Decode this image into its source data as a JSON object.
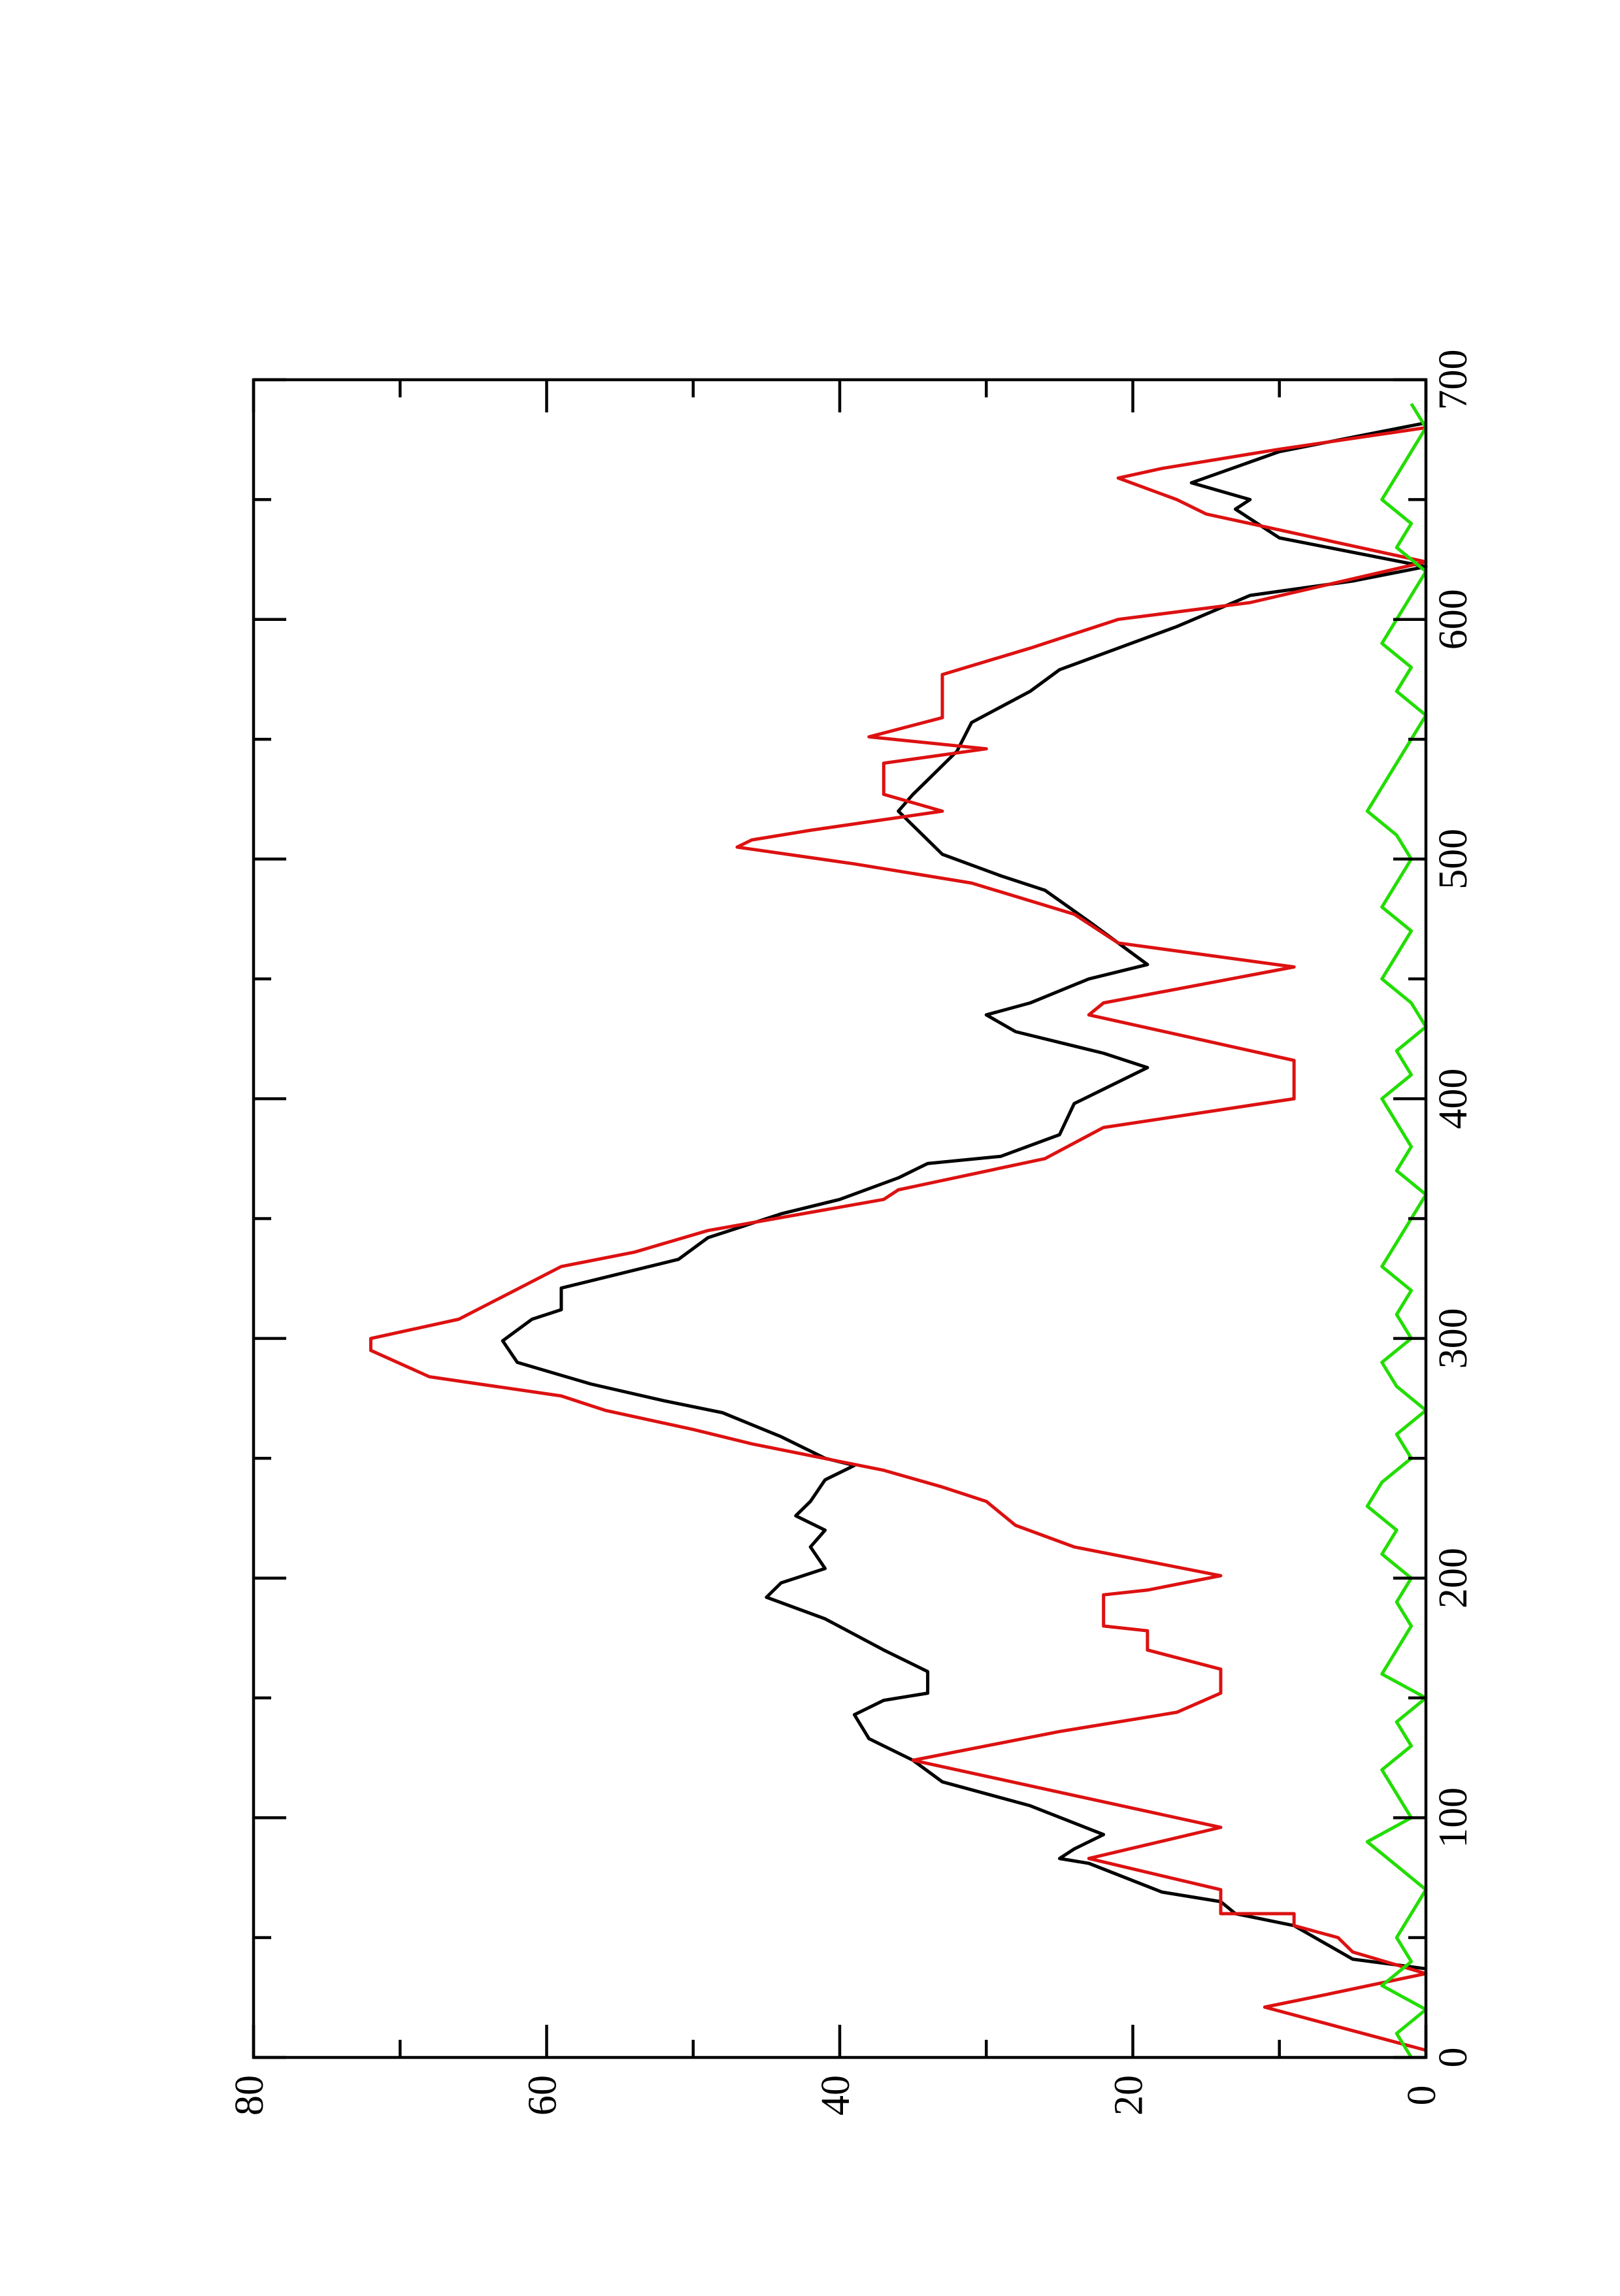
{
  "chart_data": {
    "type": "line",
    "xlim": [
      0,
      700
    ],
    "xticks": [
      0,
      100,
      200,
      300,
      400,
      500,
      600,
      700
    ],
    "xminorticks": [
      50,
      150,
      250,
      350,
      450,
      550,
      650
    ],
    "ylim": [
      0,
      80
    ],
    "yticks": [
      0,
      20,
      40,
      60,
      80
    ],
    "yminorticks": [
      10,
      30,
      50,
      70
    ],
    "rotated": true,
    "series": [
      {
        "color": "#000000",
        "x": [
          37,
          41,
          55,
          60,
          65,
          69,
          81,
          83,
          87,
          93,
          105,
          115,
          124,
          133,
          143,
          149,
          152,
          161,
          170,
          183,
          192,
          198,
          204,
          213,
          220,
          226,
          232,
          241,
          247,
          250,
          259,
          269,
          274,
          281,
          290,
          299,
          308,
          312,
          321,
          333,
          342,
          352,
          358,
          367,
          373,
          376,
          385,
          398,
          404,
          413,
          419,
          428,
          435,
          440,
          450,
          456,
          465,
          474,
          487,
          493,
          502,
          514,
          520,
          527,
          533,
          545,
          557,
          570,
          579,
          588,
          597,
          610,
          616,
          622,
          634,
          646,
          650,
          657,
          670,
          676,
          682
        ],
        "values": [
          0,
          5,
          9,
          13,
          14,
          18,
          23,
          25,
          24,
          22,
          27,
          33,
          35,
          38,
          39,
          37,
          34,
          34,
          37,
          41,
          45,
          44,
          41,
          42,
          41,
          43,
          42,
          41,
          39,
          41,
          44,
          48,
          52,
          57,
          62,
          63,
          61,
          59,
          59,
          51,
          49,
          44,
          40,
          36,
          34,
          29,
          25,
          24,
          22,
          19,
          22,
          28,
          30,
          27,
          23,
          19,
          21,
          23,
          26,
          29,
          33,
          35,
          36,
          35,
          34,
          32,
          31,
          27,
          25,
          21,
          17,
          12,
          5,
          0,
          10,
          13,
          12,
          16,
          10,
          5,
          0
        ]
      },
      {
        "color": "#dd1111",
        "x": [
          3,
          21,
          26,
          35,
          44,
          50,
          55,
          60,
          60,
          70,
          83,
          96,
          124,
          136,
          144,
          152,
          162,
          170,
          178,
          180,
          193,
          195,
          201,
          213,
          222,
          232,
          238,
          245,
          256,
          262,
          270,
          276,
          284,
          295,
          300,
          308,
          330,
          336,
          345,
          358,
          362,
          375,
          388,
          400,
          416,
          435,
          440,
          455,
          465,
          477,
          490,
          498,
          505,
          508,
          512,
          520,
          527,
          540,
          546,
          551,
          559,
          577,
          588,
          600,
          607,
          624,
          644,
          650,
          659,
          663,
          671,
          680
        ],
        "values": [
          0,
          11,
          7,
          0,
          5,
          6,
          9,
          9,
          14,
          14,
          23,
          14,
          35,
          25,
          17,
          14,
          14,
          19,
          19,
          22,
          22,
          19,
          14,
          24,
          28,
          30,
          33,
          37,
          46,
          50,
          56,
          59,
          68,
          72,
          72,
          66,
          59,
          54,
          49,
          37,
          36,
          26,
          22,
          9,
          9,
          23,
          22,
          9,
          21,
          24,
          31,
          39,
          47,
          46,
          42,
          33,
          37,
          37,
          30,
          38,
          33,
          33,
          27,
          21,
          12,
          0,
          15,
          17,
          21,
          18,
          10,
          0
        ]
      },
      {
        "color": "#22dd00",
        "x": [
          0,
          10,
          20,
          30,
          40,
          50,
          60,
          70,
          80,
          90,
          100,
          110,
          120,
          130,
          140,
          150,
          160,
          170,
          180,
          190,
          200,
          210,
          220,
          230,
          240,
          250,
          260,
          270,
          280,
          290,
          300,
          310,
          320,
          330,
          340,
          350,
          360,
          370,
          380,
          390,
          400,
          410,
          420,
          430,
          440,
          450,
          460,
          470,
          480,
          490,
          500,
          510,
          520,
          530,
          540,
          550,
          560,
          570,
          580,
          590,
          600,
          610,
          620,
          630,
          640,
          650,
          660,
          670,
          680,
          690
        ],
        "values": [
          1,
          2,
          0,
          3,
          1,
          2,
          1,
          0,
          2,
          4,
          1,
          2,
          3,
          1,
          2,
          0,
          3,
          2,
          1,
          2,
          1,
          3,
          2,
          4,
          3,
          1,
          2,
          0,
          2,
          3,
          1,
          2,
          1,
          3,
          2,
          1,
          0,
          2,
          1,
          2,
          3,
          1,
          2,
          0,
          1,
          3,
          2,
          1,
          3,
          2,
          1,
          2,
          4,
          3,
          2,
          1,
          0,
          2,
          1,
          3,
          2,
          1,
          0,
          2,
          1,
          3,
          2,
          1,
          0,
          1
        ]
      }
    ]
  }
}
